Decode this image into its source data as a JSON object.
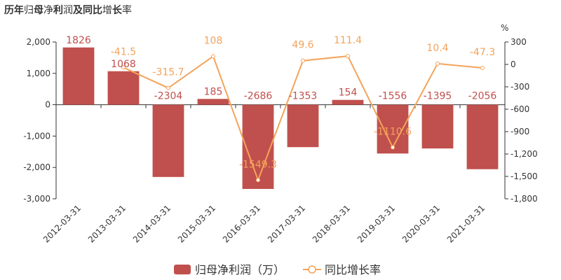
{
  "title": {
    "segments": [
      {
        "text": "历年",
        "bold": true
      },
      {
        "text": "归",
        "bold": false
      },
      {
        "text": "母",
        "bold": true
      },
      {
        "text": "净",
        "bold": false
      },
      {
        "text": "利",
        "bold": true
      },
      {
        "text": "润",
        "bold": false
      },
      {
        "text": "及同比",
        "bold": true
      },
      {
        "text": "增",
        "bold": false
      },
      {
        "text": "长",
        "bold": true
      },
      {
        "text": "率",
        "bold": false
      }
    ]
  },
  "colors": {
    "bar": "#c0504d",
    "line": "#f4a35a",
    "axis": "#333333",
    "tick_text": "#333333"
  },
  "chart_data": {
    "type": "bar",
    "title": "历年归母净利润及同比增长率",
    "categories": [
      "2012-03-31",
      "2013-03-31",
      "2014-03-31",
      "2015-03-31",
      "2016-03-31",
      "2017-03-31",
      "2018-03-31",
      "2019-03-31",
      "2020-03-31",
      "2021-03-31"
    ],
    "series": [
      {
        "name": "归母净利润（万）",
        "type": "bar",
        "axis": "left",
        "values": [
          1826,
          1068,
          -2304,
          185,
          -2686,
          -1353,
          154,
          -1556,
          -1395,
          -2056
        ],
        "labels": [
          "1826",
          "1068",
          "-2304",
          "185",
          "-2686",
          "-1353",
          "154",
          "-1556",
          "-1395",
          "-2056"
        ]
      },
      {
        "name": "同比增长率",
        "type": "line",
        "axis": "right",
        "values": [
          null,
          -41.5,
          -315.7,
          108,
          -1549.3,
          49.6,
          111.4,
          -1110.6,
          10.4,
          -47.3
        ],
        "labels": [
          null,
          "-41.5",
          "-315.7",
          "108",
          "-1549.3",
          "49.6",
          "111.4",
          "-1110.6",
          "10.4",
          "-47.3"
        ]
      }
    ],
    "y_left": {
      "ylim": [
        -3000,
        2000
      ],
      "ticks": [
        2000,
        1000,
        0,
        -1000,
        -2000,
        -3000
      ],
      "tick_labels": [
        "2,000",
        "1,000",
        "0",
        "-1,000",
        "-2,000",
        "-3,000"
      ]
    },
    "y_right": {
      "unit": "%",
      "ylim": [
        -1800,
        300
      ],
      "ticks": [
        300,
        0,
        -300,
        -600,
        -900,
        -1200,
        -1500,
        -1800
      ],
      "tick_labels": [
        "300",
        "0",
        "-300",
        "-600",
        "-900",
        "-1,200",
        "-1,500",
        "-1,800"
      ]
    },
    "grid": false,
    "legend_position": "bottom-center"
  }
}
